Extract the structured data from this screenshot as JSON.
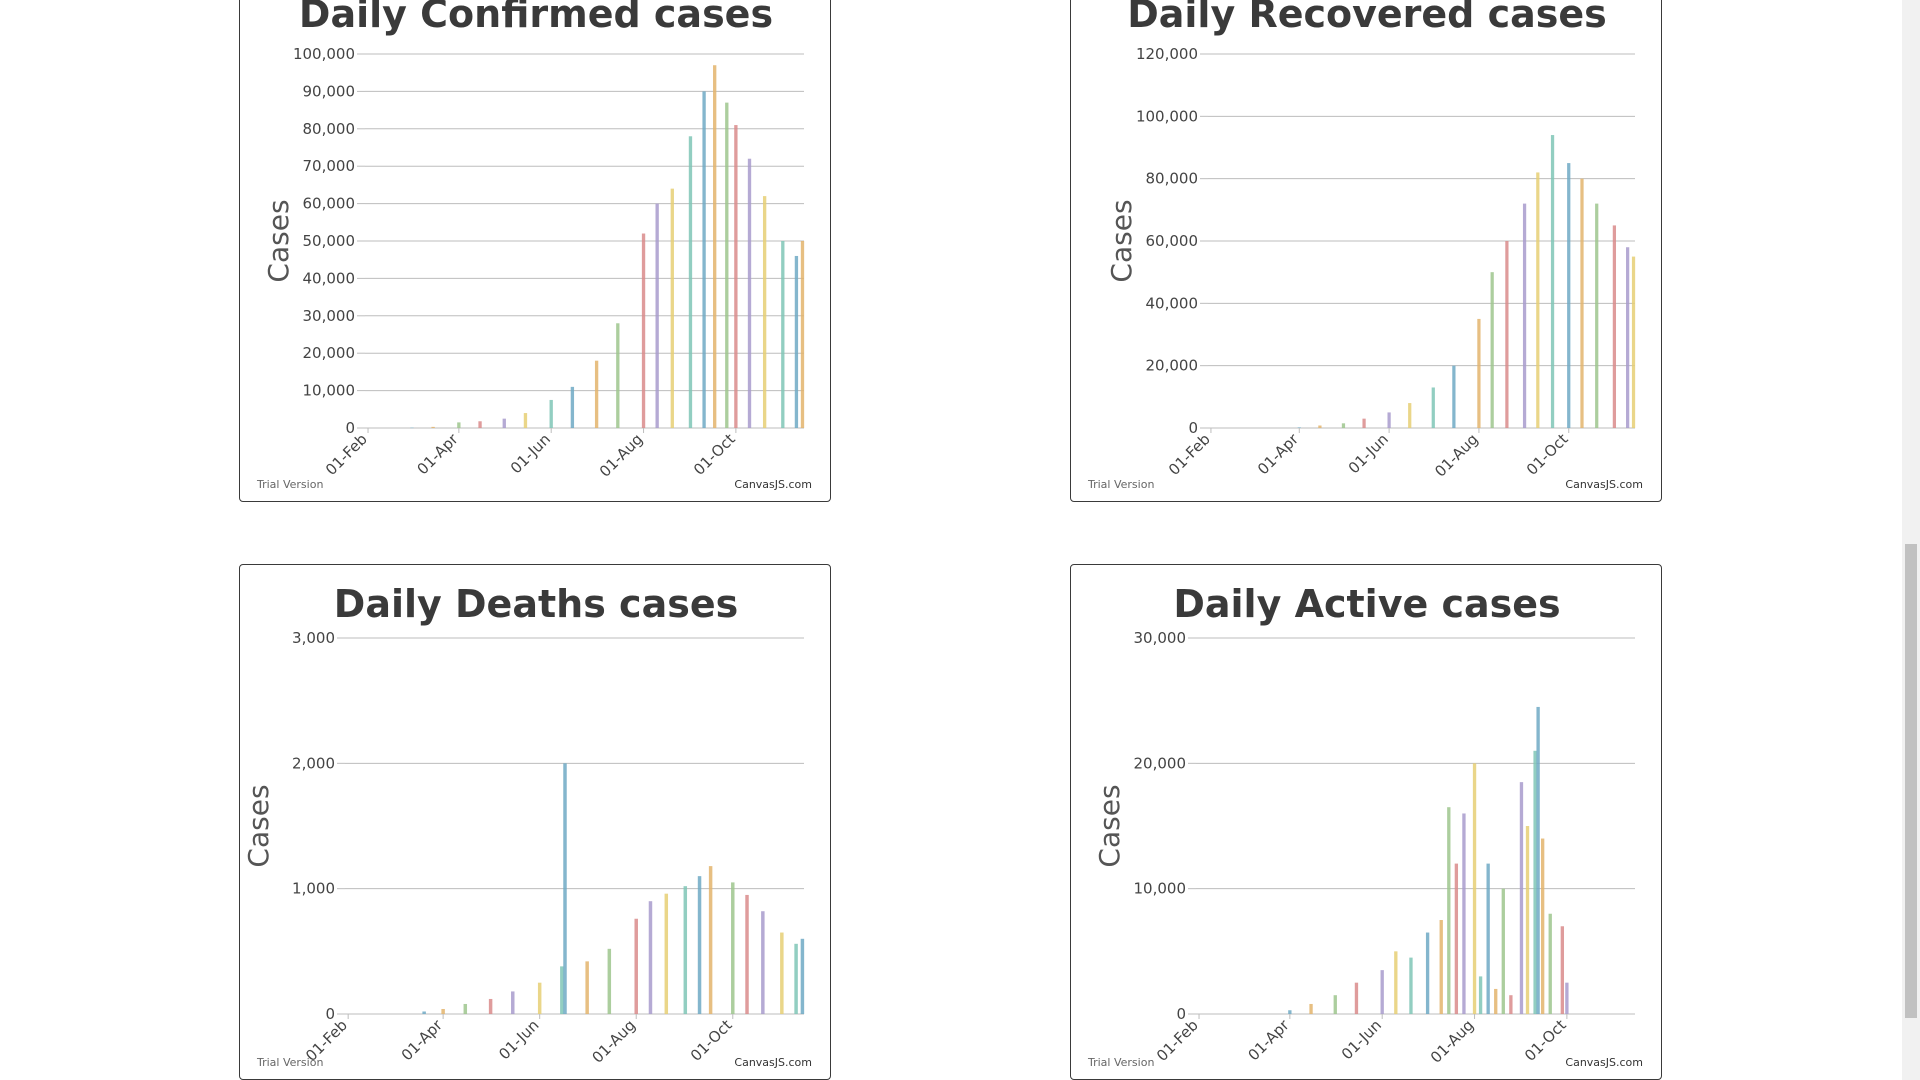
{
  "charts": [
    {
      "title": "Daily Confirmed cases",
      "ylabel": "Cases",
      "footnote": "Trial Version",
      "credit": "CanvasJS.com",
      "yticks": [
        "0",
        "10,000",
        "20,000",
        "30,000",
        "40,000",
        "50,000",
        "60,000",
        "70,000",
        "80,000",
        "90,000",
        "100,000"
      ],
      "xticks": [
        "01-Feb",
        "01-Apr",
        "01-Jun",
        "01-Aug",
        "01-Oct"
      ]
    },
    {
      "title": "Daily Recovered cases",
      "ylabel": "Cases",
      "footnote": "Trial Version",
      "credit": "CanvasJS.com",
      "yticks": [
        "0",
        "20,000",
        "40,000",
        "60,000",
        "80,000",
        "100,000",
        "120,000"
      ],
      "xticks": [
        "01-Feb",
        "01-Apr",
        "01-Jun",
        "01-Aug",
        "01-Oct"
      ]
    },
    {
      "title": "Daily Deaths cases",
      "ylabel": "Cases",
      "footnote": "Trial Version",
      "credit": "CanvasJS.com",
      "yticks": [
        "0",
        "1,000",
        "2,000",
        "3,000"
      ],
      "xticks": [
        "01-Feb",
        "01-Apr",
        "01-Jun",
        "01-Aug",
        "01-Oct"
      ]
    },
    {
      "title": "Daily Active cases",
      "ylabel": "Cases",
      "footnote": "Trial Version",
      "credit": "CanvasJS.com",
      "yticks": [
        "0",
        "10,000",
        "20,000",
        "30,000"
      ],
      "xticks": [
        "01-Feb",
        "01-Apr",
        "01-Jun",
        "01-Aug",
        "01-Oct"
      ]
    }
  ],
  "chart_data": [
    {
      "type": "bar",
      "title": "Daily Confirmed cases",
      "xlabel": "",
      "ylabel": "Cases",
      "ylim": [
        0,
        100000
      ],
      "x_start": "2020-01-30",
      "x_end": "2020-11-15",
      "grid": true,
      "palette": [
        "#6fa9c4",
        "#e3b46c",
        "#9dc58d",
        "#d98b8b",
        "#a89bcd",
        "#e6cf74",
        "#7fc6b6"
      ],
      "x": [
        "2020-03-01",
        "2020-03-15",
        "2020-04-01",
        "2020-04-15",
        "2020-05-01",
        "2020-05-15",
        "2020-06-01",
        "2020-06-15",
        "2020-07-01",
        "2020-07-15",
        "2020-08-01",
        "2020-08-10",
        "2020-08-20",
        "2020-09-01",
        "2020-09-10",
        "2020-09-17",
        "2020-09-25",
        "2020-10-01",
        "2020-10-10",
        "2020-10-20",
        "2020-11-01",
        "2020-11-10",
        "2020-11-14"
      ],
      "values": [
        100,
        300,
        1500,
        1800,
        2500,
        4000,
        7500,
        11000,
        18000,
        28000,
        52000,
        60000,
        64000,
        78000,
        90000,
        97000,
        87000,
        81000,
        72000,
        62000,
        50000,
        46000,
        50000
      ]
    },
    {
      "type": "bar",
      "title": "Daily Recovered cases",
      "xlabel": "",
      "ylabel": "Cases",
      "ylim": [
        0,
        120000
      ],
      "x_start": "2020-01-30",
      "x_end": "2020-11-15",
      "grid": true,
      "palette": [
        "#6fa9c4",
        "#e3b46c",
        "#9dc58d",
        "#d98b8b",
        "#a89bcd",
        "#e6cf74",
        "#7fc6b6"
      ],
      "x": [
        "2020-04-01",
        "2020-04-15",
        "2020-05-01",
        "2020-05-15",
        "2020-06-01",
        "2020-06-15",
        "2020-07-01",
        "2020-07-15",
        "2020-08-01",
        "2020-08-10",
        "2020-08-20",
        "2020-09-01",
        "2020-09-10",
        "2020-09-20",
        "2020-10-01",
        "2020-10-10",
        "2020-10-20",
        "2020-11-01",
        "2020-11-10",
        "2020-11-14"
      ],
      "values": [
        200,
        800,
        1500,
        3000,
        5000,
        8000,
        13000,
        20000,
        35000,
        50000,
        60000,
        72000,
        82000,
        94000,
        85000,
        80000,
        72000,
        65000,
        58000,
        55000
      ]
    },
    {
      "type": "bar",
      "title": "Daily Deaths cases",
      "xlabel": "",
      "ylabel": "Cases",
      "ylim": [
        0,
        3000
      ],
      "x_start": "2020-01-30",
      "x_end": "2020-11-15",
      "grid": true,
      "palette": [
        "#6fa9c4",
        "#e3b46c",
        "#9dc58d",
        "#d98b8b",
        "#a89bcd",
        "#e6cf74",
        "#7fc6b6"
      ],
      "x": [
        "2020-03-20",
        "2020-04-01",
        "2020-04-15",
        "2020-05-01",
        "2020-05-15",
        "2020-06-01",
        "2020-06-15",
        "2020-06-17",
        "2020-07-01",
        "2020-07-15",
        "2020-08-01",
        "2020-08-10",
        "2020-08-20",
        "2020-09-01",
        "2020-09-10",
        "2020-09-17",
        "2020-10-01",
        "2020-10-10",
        "2020-10-20",
        "2020-11-01",
        "2020-11-10",
        "2020-11-14"
      ],
      "values": [
        20,
        40,
        80,
        120,
        180,
        250,
        380,
        2000,
        420,
        520,
        760,
        900,
        960,
        1020,
        1100,
        1180,
        1050,
        950,
        820,
        650,
        560,
        600
      ]
    },
    {
      "type": "bar",
      "title": "Daily Active cases",
      "xlabel": "",
      "ylabel": "Cases",
      "ylim": [
        0,
        30000
      ],
      "x_start": "2020-01-30",
      "x_end": "2020-11-15",
      "grid": true,
      "palette": [
        "#6fa9c4",
        "#e3b46c",
        "#9dc58d",
        "#d98b8b",
        "#a89bcd",
        "#e6cf74",
        "#7fc6b6"
      ],
      "x": [
        "2020-04-01",
        "2020-04-15",
        "2020-05-01",
        "2020-05-15",
        "2020-06-01",
        "2020-06-10",
        "2020-06-20",
        "2020-07-01",
        "2020-07-10",
        "2020-07-15",
        "2020-07-20",
        "2020-07-25",
        "2020-08-01",
        "2020-08-05",
        "2020-08-10",
        "2020-08-15",
        "2020-08-20",
        "2020-08-25",
        "2020-09-01",
        "2020-09-05",
        "2020-09-10",
        "2020-09-12",
        "2020-09-15",
        "2020-09-20",
        "2020-09-28",
        "2020-10-01"
      ],
      "values": [
        300,
        800,
        1500,
        2500,
        3500,
        5000,
        4500,
        6500,
        7500,
        16500,
        12000,
        16000,
        20000,
        3000,
        12000,
        2000,
        10000,
        1500,
        18500,
        15000,
        21000,
        24500,
        14000,
        8000,
        7000,
        2500
      ]
    }
  ]
}
